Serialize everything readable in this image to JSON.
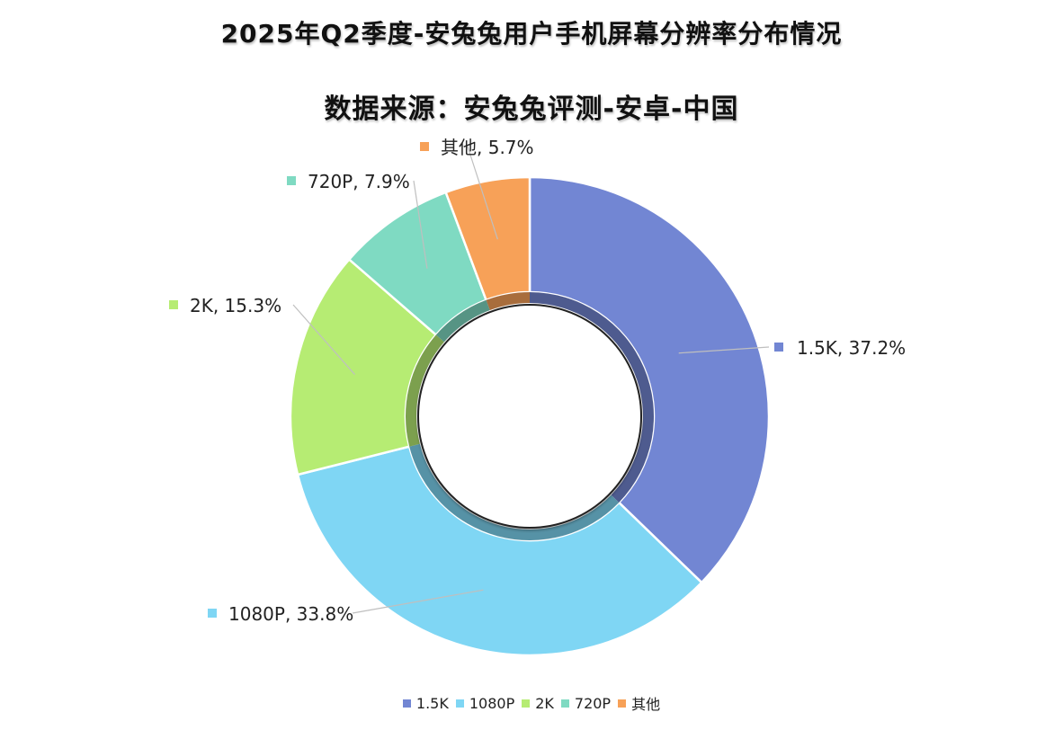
{
  "chart_data": {
    "type": "pie",
    "variant": "doughnut",
    "title": "2025年Q2季度-安兔兔用户手机屏幕分辨率分布情况",
    "subtitle": "数据来源：安兔兔评测-安卓-中国",
    "categories": [
      "1.5K",
      "1080P",
      "2K",
      "720P",
      "其他"
    ],
    "values": [
      37.2,
      33.8,
      15.3,
      7.9,
      5.7
    ],
    "unit": "%",
    "colors": [
      "#7286d3",
      "#7fd6f4",
      "#b6ec73",
      "#7fdac2",
      "#f7a158"
    ],
    "data_labels": [
      "1.5K, 37.2%",
      "1080P, 33.8%",
      "2K, 15.3%",
      "720P, 7.9%",
      "其他, 5.7%"
    ],
    "legend_position": "bottom"
  }
}
